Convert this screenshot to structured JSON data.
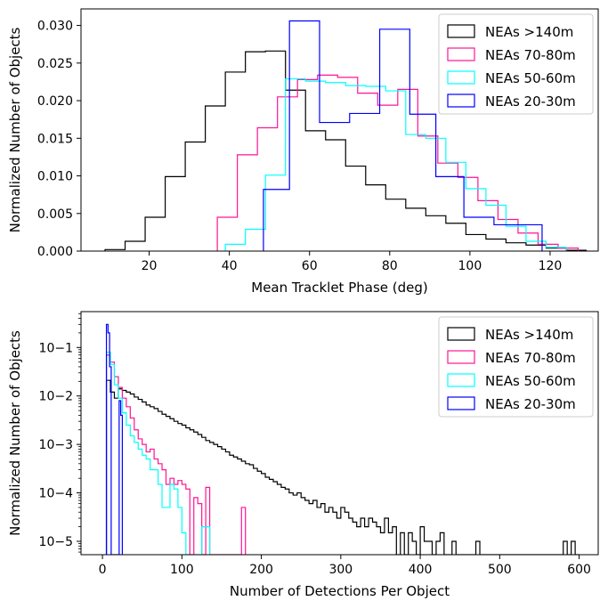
{
  "chart_data": [
    {
      "type": "histogram",
      "xlabel": "Mean Tracklet Phase (deg)",
      "ylabel": "Normalized Number of Objects",
      "xlim": [
        3,
        132
      ],
      "ylim": [
        0,
        0.0322
      ],
      "yscale": "linear",
      "xticks": [
        20,
        40,
        60,
        80,
        100,
        120
      ],
      "yticks": [
        0.0,
        0.005,
        0.01,
        0.015,
        0.02,
        0.025,
        0.03
      ],
      "ytick_labels": [
        "0.000",
        "0.005",
        "0.010",
        "0.015",
        "0.020",
        "0.025",
        "0.030"
      ],
      "legend_position": "upper right",
      "series": [
        {
          "name": "NEAs >140m",
          "color": "#000000",
          "edges": [
            9,
            14,
            19,
            24,
            29,
            34,
            39,
            44,
            49,
            54,
            59,
            64,
            69,
            74,
            79,
            84,
            89,
            94,
            99,
            104,
            109,
            114,
            119,
            124,
            129
          ],
          "values": [
            0.0002,
            0.0013,
            0.0045,
            0.0099,
            0.0145,
            0.0193,
            0.0238,
            0.0265,
            0.0266,
            0.0214,
            0.016,
            0.0148,
            0.0113,
            0.0088,
            0.0069,
            0.0057,
            0.0047,
            0.0037,
            0.0022,
            0.0016,
            0.0011,
            0.0008,
            0.0004,
            0.0001
          ]
        },
        {
          "name": "NEAs 70-80m",
          "color": "#ff1493",
          "edges": [
            37,
            42,
            47,
            52,
            57,
            62,
            67,
            72,
            77,
            82,
            87,
            92,
            97,
            102,
            107,
            112,
            117,
            122,
            127
          ],
          "values": [
            0.0045,
            0.0128,
            0.0164,
            0.0205,
            0.0228,
            0.0234,
            0.0231,
            0.021,
            0.0194,
            0.0215,
            0.0153,
            0.0117,
            0.0098,
            0.0067,
            0.0042,
            0.0024,
            0.0009,
            0.0004
          ]
        },
        {
          "name": "NEAs 50-60m",
          "color": "#00ffff",
          "edges": [
            39,
            44,
            49,
            54,
            59,
            64,
            69,
            74,
            79,
            84,
            89,
            94,
            99,
            104,
            109,
            114,
            119,
            124
          ],
          "values": [
            0.0009,
            0.0029,
            0.0101,
            0.0229,
            0.0226,
            0.0224,
            0.022,
            0.0219,
            0.0213,
            0.0155,
            0.015,
            0.0118,
            0.0083,
            0.0061,
            0.0033,
            0.0013,
            0.0005
          ]
        },
        {
          "name": "NEAs 20-30m",
          "color": "#0000ff",
          "edges": [
            48.5,
            55,
            62.5,
            70,
            77.5,
            85,
            91.5,
            98.5,
            106,
            118
          ],
          "values": [
            0.0082,
            0.0306,
            0.0171,
            0.0183,
            0.0295,
            0.0182,
            0.0099,
            0.0045,
            0.0035
          ]
        }
      ]
    },
    {
      "type": "histogram",
      "xlabel": "Number of Detections Per Object",
      "ylabel": "Normalized Number of Objects",
      "xlim": [
        -27,
        624
      ],
      "ylim": [
        5.3e-06,
        0.55
      ],
      "yscale": "log",
      "xticks": [
        0,
        100,
        200,
        300,
        400,
        500,
        600
      ],
      "yticks": [
        1e-05,
        0.0001,
        0.001,
        0.01,
        0.1
      ],
      "ytick_labels": [
        "10−5",
        "10−4",
        "10−3",
        "10−2",
        "10−1"
      ],
      "legend_position": "upper right",
      "series": [
        {
          "name": "NEAs >140m",
          "color": "#000000",
          "edges": [
            5,
            10,
            15,
            20,
            25,
            30,
            35,
            40,
            45,
            50,
            55,
            60,
            65,
            70,
            75,
            80,
            85,
            90,
            95,
            100,
            105,
            110,
            115,
            120,
            125,
            130,
            135,
            140,
            145,
            150,
            155,
            160,
            165,
            170,
            175,
            180,
            185,
            190,
            195,
            200,
            205,
            210,
            215,
            220,
            225,
            230,
            235,
            240,
            245,
            250,
            255,
            260,
            265,
            270,
            275,
            280,
            285,
            290,
            295,
            300,
            305,
            310,
            315,
            320,
            325,
            330,
            335,
            340,
            345,
            350,
            355,
            360,
            365,
            370,
            375,
            380,
            385,
            390,
            395,
            400,
            405,
            410,
            415,
            420,
            425,
            430,
            435,
            440,
            445,
            450,
            455,
            460,
            465,
            470,
            475,
            480,
            485,
            490,
            495,
            500,
            505,
            510,
            515,
            520,
            525,
            530,
            535,
            540,
            545,
            550,
            555,
            560,
            565,
            570,
            575,
            580,
            585,
            590,
            595,
            600
          ],
          "values": [
            0.021,
            0.012,
            0.009,
            0.014,
            0.013,
            0.012,
            0.011,
            0.0095,
            0.0085,
            0.0075,
            0.0065,
            0.006,
            0.0055,
            0.0048,
            0.0042,
            0.0038,
            0.0034,
            0.003,
            0.0027,
            0.0025,
            0.0022,
            0.002,
            0.0018,
            0.0016,
            0.0014,
            0.0012,
            0.0011,
            0.001,
            0.0009,
            0.0008,
            0.0007,
            0.0006,
            0.00055,
            0.0005,
            0.00045,
            0.0004,
            0.00038,
            0.00032,
            0.00028,
            0.00025,
            0.00021,
            0.00019,
            0.00017,
            0.00015,
            0.00013,
            0.00012,
            0.0001,
            9e-05,
            0.0001,
            8e-05,
            7e-05,
            6e-05,
            7e-05,
            5e-05,
            6e-05,
            4e-05,
            5e-05,
            4e-05,
            3e-05,
            5e-05,
            4e-05,
            3e-05,
            2.5e-05,
            2e-05,
            3e-05,
            2e-05,
            3e-05,
            2.5e-05,
            2e-05,
            1.5e-05,
            3e-05,
            1.5e-05,
            2e-05,
            5.3e-06,
            1.5e-05,
            5.3e-06,
            1.5e-05,
            1e-05,
            5.3e-06,
            2e-05,
            1e-05,
            1e-05,
            5.3e-06,
            1e-05,
            1.5e-05,
            5.3e-06,
            5.3e-06,
            1e-05,
            5.3e-06,
            5.3e-06,
            5.3e-06,
            5.3e-06,
            5.3e-06,
            1e-05,
            5.3e-06,
            5.3e-06,
            5.3e-06,
            5.3e-06,
            5.3e-06,
            5.3e-06,
            5.3e-06,
            5.3e-06,
            5.3e-06,
            5.3e-06,
            5.3e-06,
            5.3e-06,
            5.3e-06,
            5.3e-06,
            5.3e-06,
            5.3e-06,
            5.3e-06,
            5.3e-06,
            5.3e-06,
            5.3e-06,
            5.3e-06,
            1e-05,
            5.3e-06,
            1e-05,
            5.3e-06
          ]
        },
        {
          "name": "NEAs 70-80m",
          "color": "#ff1493",
          "edges": [
            5,
            10,
            15,
            20,
            25,
            30,
            35,
            40,
            45,
            50,
            55,
            60,
            65,
            70,
            75,
            80,
            85,
            90,
            95,
            100,
            105,
            110,
            115,
            120,
            125,
            130,
            135,
            140,
            145,
            150,
            155,
            160,
            165,
            170,
            175,
            180
          ],
          "values": [
            0.07,
            0.05,
            0.025,
            0.015,
            0.009,
            0.006,
            0.0035,
            0.002,
            0.0013,
            0.001,
            0.0007,
            0.0008,
            0.0005,
            0.0004,
            0.0003,
            0.00015,
            0.0002,
            0.00015,
            0.00018,
            0.00015,
            0.00012,
            5.3e-06,
            8e-05,
            6e-05,
            5.3e-06,
            0.00013,
            5.3e-06,
            5.3e-06,
            5.3e-06,
            5.3e-06,
            5.3e-06,
            5.3e-06,
            5.3e-06,
            5.3e-06,
            5e-05
          ]
        },
        {
          "name": "NEAs 50-60m",
          "color": "#00ffff",
          "edges": [
            5,
            10,
            15,
            20,
            25,
            30,
            35,
            40,
            45,
            50,
            55,
            60,
            65,
            70,
            75,
            80,
            85,
            90,
            95,
            100,
            105,
            110,
            115,
            120,
            125,
            130,
            135
          ],
          "values": [
            0.08,
            0.045,
            0.017,
            0.009,
            0.0045,
            0.0025,
            0.0015,
            0.0011,
            0.0008,
            0.0006,
            0.0005,
            0.0003,
            0.0003,
            0.00015,
            5e-05,
            5e-05,
            0.00015,
            0.00012,
            5e-05,
            1.5e-05,
            5.3e-06,
            5.3e-06,
            5.3e-06,
            5.3e-06,
            2e-05,
            2e-05
          ]
        },
        {
          "name": "NEAs 20-30m",
          "color": "#0000ff",
          "edges": [
            5,
            7,
            9,
            11,
            13,
            15,
            17,
            19,
            21,
            23,
            25
          ],
          "values": [
            0.3,
            0.2,
            0.04,
            5.3e-06,
            5.3e-06,
            5.3e-06,
            5.3e-06,
            5.3e-06,
            0.008,
            0.004
          ]
        }
      ]
    }
  ]
}
